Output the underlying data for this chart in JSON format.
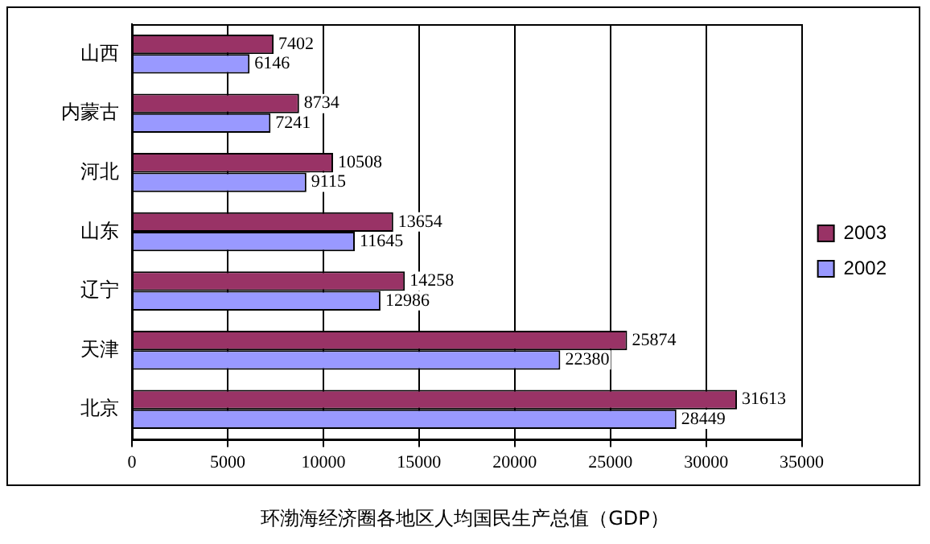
{
  "chart_data": {
    "type": "bar",
    "orientation": "horizontal",
    "title": "环渤海经济圈各地区人均国民生产总值（GDP）",
    "categories": [
      "山西",
      "内蒙古",
      "河北",
      "山东",
      "辽宁",
      "天津",
      "北京"
    ],
    "series": [
      {
        "name": "2003",
        "color": "#993366",
        "values": [
          7402,
          8734,
          10508,
          13654,
          14258,
          25874,
          31613
        ]
      },
      {
        "name": "2002",
        "color": "#9999ff",
        "values": [
          6146,
          7241,
          9115,
          11645,
          12986,
          22380,
          28449
        ]
      }
    ],
    "xlim": [
      0,
      35000
    ],
    "xticks": [
      0,
      5000,
      10000,
      15000,
      20000,
      25000,
      30000,
      35000
    ],
    "grid": "x",
    "legend": "right",
    "data_labels": true
  }
}
